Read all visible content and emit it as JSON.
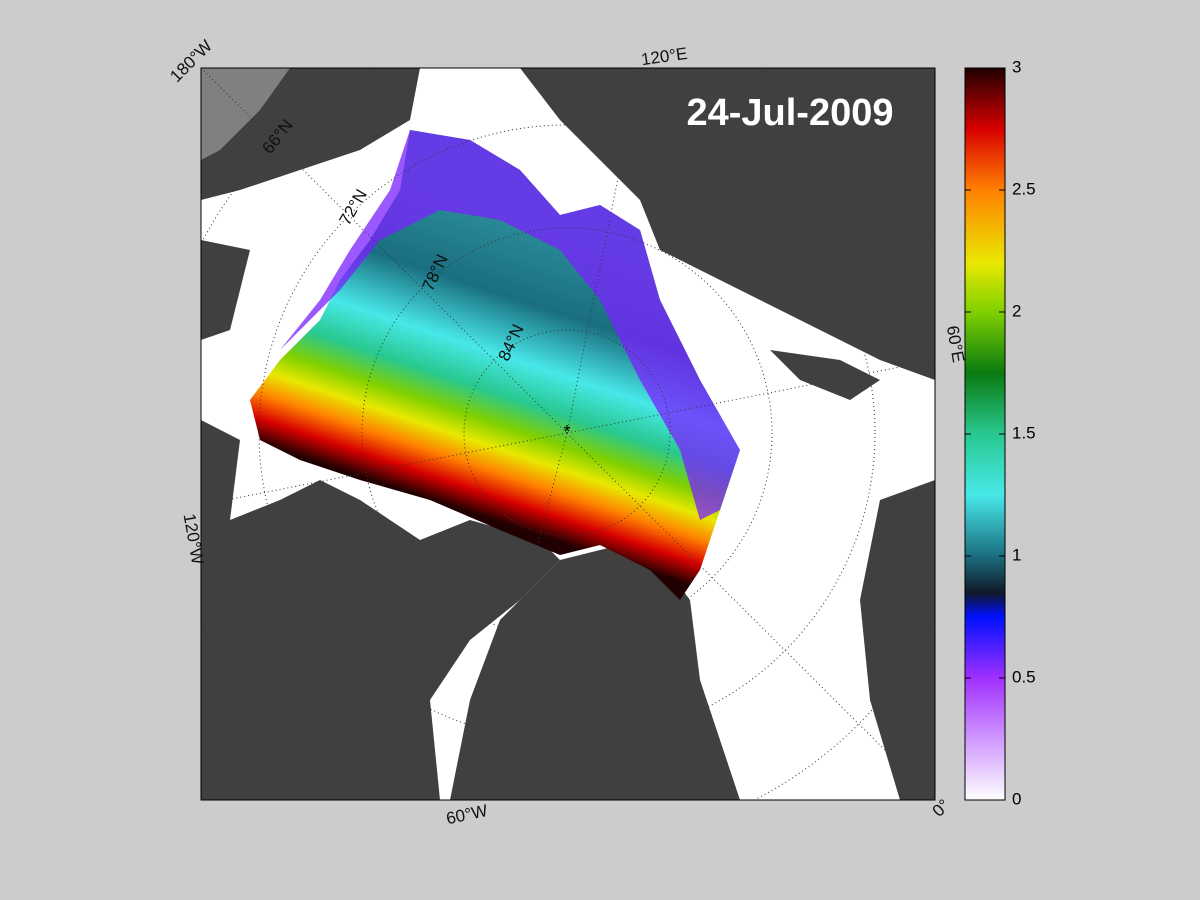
{
  "date": "24-Jul-2009",
  "graticule": {
    "lon_labels": [
      "180°W",
      "120°E",
      "60°E",
      "0°",
      "60°W",
      "120°W"
    ],
    "lat_labels": [
      "66°N",
      "72°N",
      "78°N",
      "84°N"
    ]
  },
  "colorbar": {
    "lim": [
      0,
      3
    ],
    "ticks": [
      0,
      0.5,
      1,
      1.5,
      2,
      2.5,
      3
    ],
    "colormap": [
      {
        "value": 0,
        "color": "#ffffff"
      },
      {
        "value": 0.5,
        "color": "#a030ff"
      },
      {
        "value": 0.75,
        "color": "#0010ff"
      },
      {
        "value": 0.85,
        "color": "#101828"
      },
      {
        "value": 1,
        "color": "#1a6e80"
      },
      {
        "value": 1.25,
        "color": "#48e8e8"
      },
      {
        "value": 1.5,
        "color": "#28c890"
      },
      {
        "value": 1.75,
        "color": "#0a7a10"
      },
      {
        "value": 2,
        "color": "#80d000"
      },
      {
        "value": 2.2,
        "color": "#e8e800"
      },
      {
        "value": 2.5,
        "color": "#ff8000"
      },
      {
        "value": 2.75,
        "color": "#d80000"
      },
      {
        "value": 3,
        "color": "#200000"
      }
    ]
  }
}
